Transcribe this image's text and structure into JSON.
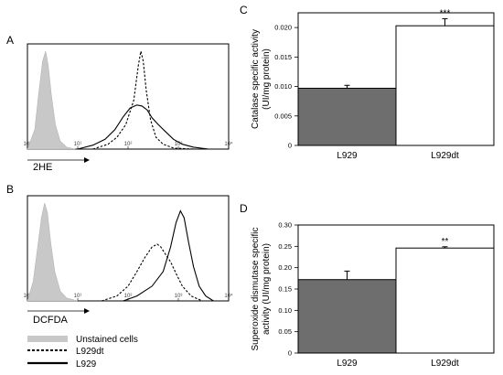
{
  "panels": {
    "A": {
      "letter": "A",
      "xlabel": "2HE"
    },
    "B": {
      "letter": "B",
      "xlabel": "DCFDA"
    },
    "C": {
      "letter": "C"
    },
    "D": {
      "letter": "D"
    }
  },
  "legend": {
    "items": [
      {
        "label": "Unstained cells",
        "style": "filled-gray"
      },
      {
        "label": "L929dt",
        "style": "dashed"
      },
      {
        "label": "L929",
        "style": "solid"
      }
    ]
  },
  "chart_data": [
    {
      "type": "area",
      "panel": "A",
      "xlabel": "2HE",
      "x_scale": "log",
      "xlim": [
        1,
        10000
      ],
      "x_ticks": [
        "10⁰",
        "10¹",
        "10²",
        "10³",
        "10⁴"
      ],
      "series": [
        {
          "name": "Unstained cells",
          "style": "filled-gray",
          "points": [
            [
              1,
              0
            ],
            [
              1.4,
              0.2
            ],
            [
              1.7,
              0.6
            ],
            [
              2.0,
              0.9
            ],
            [
              2.3,
              1.0
            ],
            [
              2.6,
              0.85
            ],
            [
              3.0,
              0.55
            ],
            [
              3.6,
              0.25
            ],
            [
              4.5,
              0.08
            ],
            [
              6,
              0.02
            ],
            [
              9,
              0
            ]
          ]
        },
        {
          "name": "L929dt",
          "style": "dashed",
          "points": [
            [
              20,
              0
            ],
            [
              40,
              0.05
            ],
            [
              60,
              0.12
            ],
            [
              90,
              0.25
            ],
            [
              130,
              0.5
            ],
            [
              160,
              0.85
            ],
            [
              180,
              1.0
            ],
            [
              200,
              0.9
            ],
            [
              230,
              0.6
            ],
            [
              280,
              0.3
            ],
            [
              360,
              0.12
            ],
            [
              500,
              0.05
            ],
            [
              800,
              0.01
            ],
            [
              2000,
              0
            ]
          ]
        },
        {
          "name": "L929",
          "style": "solid",
          "points": [
            [
              10,
              0
            ],
            [
              20,
              0.04
            ],
            [
              35,
              0.1
            ],
            [
              55,
              0.2
            ],
            [
              80,
              0.33
            ],
            [
              110,
              0.42
            ],
            [
              150,
              0.45
            ],
            [
              190,
              0.44
            ],
            [
              240,
              0.4
            ],
            [
              300,
              0.32
            ],
            [
              400,
              0.25
            ],
            [
              550,
              0.18
            ],
            [
              800,
              0.1
            ],
            [
              1200,
              0.05
            ],
            [
              2000,
              0.02
            ],
            [
              4000,
              0
            ]
          ]
        }
      ]
    },
    {
      "type": "area",
      "panel": "B",
      "xlabel": "DCFDA",
      "x_scale": "log",
      "xlim": [
        1,
        10000
      ],
      "x_ticks": [
        "10⁰",
        "10¹",
        "10²",
        "10³",
        "10⁴"
      ],
      "series": [
        {
          "name": "Unstained cells",
          "style": "filled-gray",
          "points": [
            [
              1,
              0
            ],
            [
              1.3,
              0.2
            ],
            [
              1.6,
              0.55
            ],
            [
              1.9,
              0.85
            ],
            [
              2.2,
              1.0
            ],
            [
              2.5,
              0.9
            ],
            [
              2.9,
              0.6
            ],
            [
              3.5,
              0.3
            ],
            [
              4.5,
              0.1
            ],
            [
              6,
              0.03
            ],
            [
              10,
              0
            ]
          ]
        },
        {
          "name": "L929dt",
          "style": "dashed",
          "points": [
            [
              30,
              0
            ],
            [
              60,
              0.05
            ],
            [
              100,
              0.15
            ],
            [
              150,
              0.3
            ],
            [
              220,
              0.45
            ],
            [
              300,
              0.55
            ],
            [
              380,
              0.58
            ],
            [
              450,
              0.55
            ],
            [
              550,
              0.48
            ],
            [
              700,
              0.4
            ],
            [
              900,
              0.28
            ],
            [
              1200,
              0.15
            ],
            [
              1800,
              0.05
            ],
            [
              3000,
              0
            ]
          ]
        },
        {
          "name": "L929",
          "style": "solid",
          "points": [
            [
              80,
              0
            ],
            [
              150,
              0.05
            ],
            [
              300,
              0.15
            ],
            [
              500,
              0.3
            ],
            [
              700,
              0.55
            ],
            [
              900,
              0.8
            ],
            [
              1100,
              0.92
            ],
            [
              1300,
              0.85
            ],
            [
              1600,
              0.6
            ],
            [
              2000,
              0.35
            ],
            [
              2600,
              0.15
            ],
            [
              3500,
              0.05
            ],
            [
              5000,
              0
            ]
          ]
        }
      ]
    },
    {
      "type": "bar",
      "panel": "C",
      "ylabel": "Catalase specific activity (UI/mg protein)",
      "ylabel_lines": [
        "Catalase specific activity",
        "(UI/mg protein)"
      ],
      "categories": [
        "L929",
        "L929dt"
      ],
      "values": [
        0.0097,
        0.0203
      ],
      "errors": [
        0.0005,
        0.0012
      ],
      "bar_colors": [
        "#6e6e6e",
        "#ffffff"
      ],
      "ylim": [
        0,
        0.0225
      ],
      "y_ticks": [
        "0",
        "0.005",
        "0.010",
        "0.015",
        "0.020"
      ],
      "y_tick_values": [
        0,
        0.005,
        0.01,
        0.015,
        0.02
      ],
      "annotations": [
        {
          "category": "L929dt",
          "text": "***"
        }
      ]
    },
    {
      "type": "bar",
      "panel": "D",
      "ylabel": "Superoxide dismutase specific activity (UI/mg protein)",
      "ylabel_lines": [
        "Superoxide dismutase specific",
        "activity (UI/mg protein)"
      ],
      "categories": [
        "L929",
        "L929dt"
      ],
      "values": [
        0.172,
        0.246
      ],
      "errors": [
        0.02,
        0.003
      ],
      "bar_colors": [
        "#6e6e6e",
        "#ffffff"
      ],
      "ylim": [
        0,
        0.3
      ],
      "y_ticks": [
        "0",
        "0.05",
        "0.10",
        "0.15",
        "0.20",
        "0.25",
        "0.30"
      ],
      "y_tick_values": [
        0,
        0.05,
        0.1,
        0.15,
        0.2,
        0.25,
        0.3
      ],
      "annotations": [
        {
          "category": "L929dt",
          "text": "**"
        }
      ]
    }
  ]
}
